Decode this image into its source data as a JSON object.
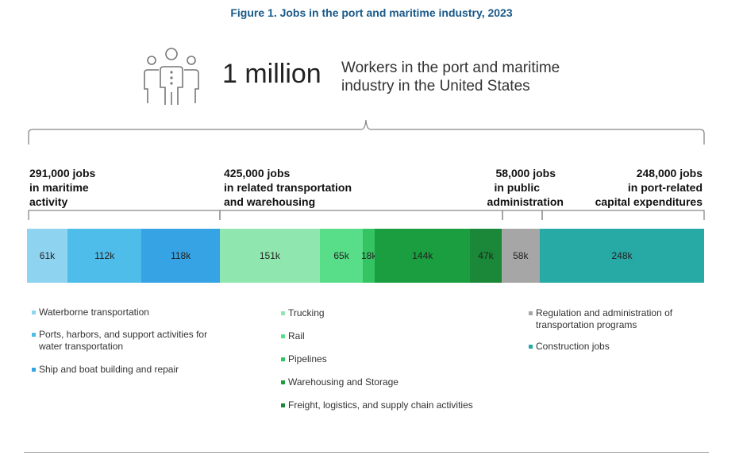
{
  "title": "Figure 1. Jobs in the port and maritime industry, 2023",
  "headline": {
    "value": "1 million",
    "text_line1": "Workers in the port and maritime",
    "text_line2": "industry in the United States",
    "icon": "people-group-icon"
  },
  "groups": [
    {
      "lines": [
        "291,000 jobs",
        "in maritime",
        "activity"
      ]
    },
    {
      "lines": [
        "425,000 jobs",
        "in related transportation",
        "and warehousing"
      ]
    },
    {
      "lines": [
        "58,000 jobs",
        "in public",
        "administration"
      ]
    },
    {
      "lines": [
        "248,000 jobs",
        "in port-related",
        "capital expenditures"
      ]
    }
  ],
  "chart_data": {
    "type": "bar",
    "stacked": true,
    "orientation": "horizontal",
    "unit": "thousand jobs",
    "segments": [
      {
        "name": "Waterborne transportation",
        "value": 61,
        "label": "61k",
        "color": "#8ed3f0"
      },
      {
        "name": "Ports, harbors, and support activities for water transportation",
        "value": 112,
        "label": "112k",
        "color": "#4fbde9"
      },
      {
        "name": "Ship and boat building and repair",
        "value": 118,
        "label": "118k",
        "color": "#36a3e5"
      },
      {
        "name": "Trucking",
        "value": 151,
        "label": "151k",
        "color": "#8fe6ae"
      },
      {
        "name": "Rail",
        "value": 65,
        "label": "65k",
        "color": "#58dd88"
      },
      {
        "name": "Pipelines",
        "value": 18,
        "label": "18k",
        "color": "#35c463"
      },
      {
        "name": "Warehousing and Storage",
        "value": 144,
        "label": "144k",
        "color": "#1b9e3f"
      },
      {
        "name": "Freight, logistics, and supply chain activities",
        "value": 47,
        "label": "47k",
        "color": "#1a8838"
      },
      {
        "name": "Regulation and administration of transportation programs",
        "value": 58,
        "label": "58k",
        "color": "#a6a6a6"
      },
      {
        "name": "Construction jobs",
        "value": 248,
        "label": "248k",
        "color": "#27aaa6"
      }
    ]
  }
}
